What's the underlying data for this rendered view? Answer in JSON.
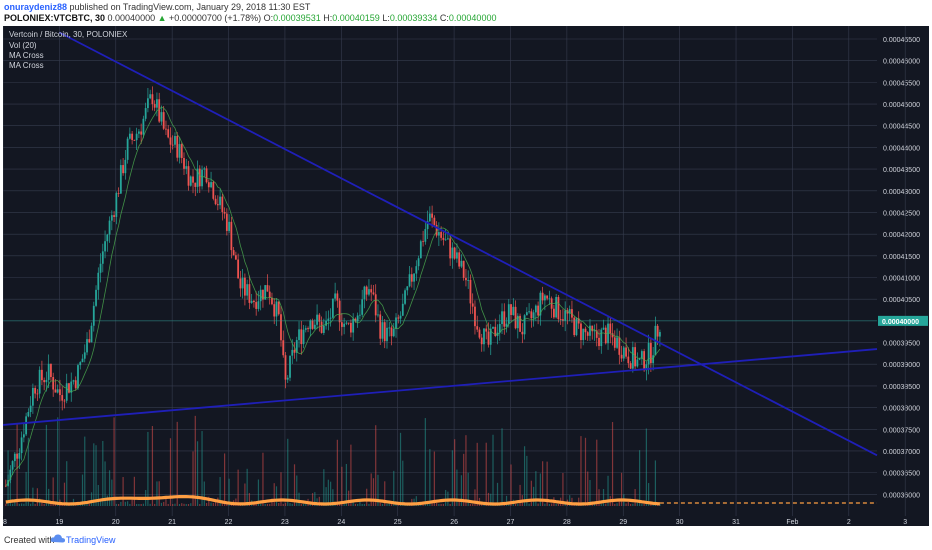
{
  "header": {
    "user": "onuraydeniz88",
    "published_text": "published on TradingView.com, January 29, 2018 11:30 EST",
    "symbol": "POLONIEX:VTCBTC, 30",
    "last": "0.00040000",
    "change_arrow": "▲",
    "change": "+0.00000700 (+1.78%)",
    "o_label": "O:",
    "o_value": "0.00039531",
    "h_label": "H:",
    "h_value": "0.00040159",
    "l_label": "L:",
    "l_value": "0.00039334",
    "c_label": "C:",
    "c_value": "0.00040000"
  },
  "legend": {
    "title": "Vertcoin / Bitcoin, 30, POLONIEX",
    "vol": "Vol (20)",
    "ma1": "MA Cross",
    "ma2": "MA Cross"
  },
  "footer": {
    "created_with": "Created with",
    "brand": "TradingView"
  },
  "colors": {
    "background": "#131722",
    "grid": "#363c4e",
    "axis_text": "#d1d4dc",
    "up": "#26a69a",
    "down": "#ef5350",
    "trendline": "#1f1fb8",
    "volume_ma": "#ff9f43",
    "ma": "#4caf50",
    "price_badge": "#26a69a"
  },
  "chart_data": {
    "type": "candlestick",
    "title": "Vertcoin / Bitcoin, 30, POLONIEX",
    "x_tick_labels": [
      "18",
      "19",
      "20",
      "21",
      "22",
      "23",
      "24",
      "25",
      "26",
      "27",
      "28",
      "29",
      "30",
      "31",
      "Feb",
      "2",
      "3"
    ],
    "y_tick_labels": [
      "0.00046500",
      "0.00046000",
      "0.00045500",
      "0.00045000",
      "0.00044500",
      "0.00044000",
      "0.00043500",
      "0.00043000",
      "0.00042500",
      "0.00042000",
      "0.00041500",
      "0.00041000",
      "0.00040500",
      "0.00040000",
      "0.00039500",
      "0.00039000",
      "0.00038500",
      "0.00038000",
      "0.00037500",
      "0.00037000",
      "0.00036500",
      "0.00036000"
    ],
    "ylim": [
      0.000355,
      0.000468
    ],
    "xlim": [
      18.0,
      33.5
    ],
    "current_price": 0.0004,
    "current_price_label": "0.00040000",
    "price_path": [
      [
        18.05,
        0.000362
      ],
      [
        18.3,
        0.000372
      ],
      [
        18.55,
        0.000385
      ],
      [
        18.8,
        0.000388
      ],
      [
        19.0,
        0.000383
      ],
      [
        19.3,
        0.000387
      ],
      [
        19.5,
        0.000395
      ],
      [
        19.75,
        0.000415
      ],
      [
        20.0,
        0.000428
      ],
      [
        20.2,
        0.00044
      ],
      [
        20.45,
        0.000445
      ],
      [
        20.65,
        0.000452
      ],
      [
        20.9,
        0.000442
      ],
      [
        21.1,
        0.00044
      ],
      [
        21.35,
        0.000432
      ],
      [
        21.6,
        0.000435
      ],
      [
        21.8,
        0.000428
      ],
      [
        22.0,
        0.000422
      ],
      [
        22.2,
        0.000408
      ],
      [
        22.45,
        0.000405
      ],
      [
        22.7,
        0.000408
      ],
      [
        22.9,
        0.0004
      ],
      [
        23.0,
        0.000385
      ],
      [
        23.2,
        0.000395
      ],
      [
        23.45,
        0.000401
      ],
      [
        23.7,
        0.000398
      ],
      [
        23.9,
        0.000404
      ],
      [
        24.1,
        0.000398
      ],
      [
        24.3,
        0.000402
      ],
      [
        24.5,
        0.000408
      ],
      [
        24.7,
        0.000398
      ],
      [
        24.9,
        0.000396
      ],
      [
        25.1,
        0.000403
      ],
      [
        25.35,
        0.000415
      ],
      [
        25.55,
        0.000424
      ],
      [
        25.75,
        0.00042
      ],
      [
        26.0,
        0.000415
      ],
      [
        26.2,
        0.00041
      ],
      [
        26.4,
        0.0004
      ],
      [
        26.6,
        0.000394
      ],
      [
        26.8,
        0.0004
      ],
      [
        27.0,
        0.000402
      ],
      [
        27.2,
        0.000398
      ],
      [
        27.4,
        0.000401
      ],
      [
        27.6,
        0.000406
      ],
      [
        27.8,
        0.000403
      ],
      [
        28.0,
        0.000401
      ],
      [
        28.2,
        0.000398
      ],
      [
        28.45,
        0.000396
      ],
      [
        28.7,
        0.000397
      ],
      [
        28.9,
        0.000395
      ],
      [
        29.1,
        0.000392
      ],
      [
        29.3,
        0.00039
      ],
      [
        29.5,
        0.000393
      ],
      [
        29.65,
        0.0004
      ]
    ],
    "trendlines": [
      {
        "name": "descending resistance",
        "points": [
          [
            19.0,
            0.0004665
          ],
          [
            33.5,
            0.000369
          ]
        ]
      },
      {
        "name": "ascending support",
        "points": [
          [
            18.0,
            0.000376
          ],
          [
            33.5,
            0.0003935
          ]
        ]
      }
    ]
  }
}
